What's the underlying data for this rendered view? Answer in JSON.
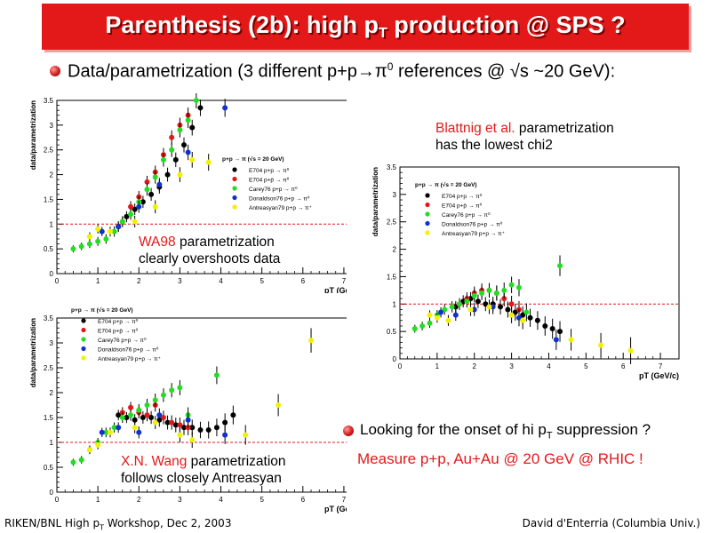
{
  "header": {
    "title_pre": "Parenthesis (2b): high p",
    "title_sub": "T",
    "title_post": " production @ SPS ?"
  },
  "bullet_main": {
    "text_pre": "Data/parametrization (3 different p+p→π",
    "text_sup": "0",
    "text_post": " references @ √s ~20 GeV):"
  },
  "notes": {
    "wa98_red": "WA98",
    "wa98_rest": " parametrization",
    "wa98_line2": "clearly overshoots data",
    "blattnig_red": "Blattnig et al.",
    "blattnig_rest": " parametrization",
    "blattnig_line2": "has the lowest chi2",
    "wang_red": "X.N. Wang",
    "wang_rest": " parametrization",
    "wang_line2": "follows closely Antreasyan"
  },
  "bullet_onset": {
    "text_pre": "Looking for the onset of hi p",
    "text_sub": "T",
    "text_post": " suppression ?"
  },
  "measure": "Measure p+p, Au+Au @ 20 GeV @ RHIC !",
  "footer": {
    "left_pre": "RIKEN/BNL High p",
    "left_sub": "T",
    "left_post": " Workshop, Dec 2, 2003",
    "right": "David d'Enterria (Columbia Univ.)"
  },
  "colors": {
    "title_bg": "#e31919",
    "accent_red": "#e31919",
    "E704_pi0": "#000000",
    "E704_pibar0": "#e31919",
    "Carey76": "#22dd22",
    "Donaldson76": "#1030d0",
    "Antreasyan79": "#f2f200"
  },
  "chart_data": [
    {
      "id": "wa98",
      "type": "scatter",
      "xlabel": "p_T (GeV/c)",
      "ylabel": "data/parametrization",
      "xlim": [
        0,
        7.5
      ],
      "ylim": [
        0,
        3.5
      ],
      "xticks": [
        "0",
        "1",
        "2",
        "3",
        "4",
        "5",
        "6",
        "7"
      ],
      "yticks": [
        "0",
        "0.5",
        "1",
        "1.5",
        "2",
        "2.5",
        "3",
        "3.5"
      ],
      "reference_line": 1,
      "legend_header": "p+p → π (√s = 20 GeV)",
      "series": [
        {
          "name": "E704 p+p → π⁰",
          "color": "#000000",
          "x": [
            1.5,
            1.7,
            1.9,
            2.1,
            2.3,
            2.5,
            2.7,
            2.9,
            3.1,
            3.3,
            3.5
          ],
          "y": [
            0.95,
            1.15,
            1.3,
            1.45,
            1.6,
            1.75,
            2.0,
            2.3,
            2.6,
            2.95,
            3.35
          ]
        },
        {
          "name": "E704 p+p̄ → π⁰",
          "color": "#e31919",
          "x": [
            1.6,
            1.8,
            2.0,
            2.2,
            2.4,
            2.6,
            2.8,
            3.0,
            3.2
          ],
          "y": [
            1.05,
            1.35,
            1.55,
            1.85,
            2.05,
            2.4,
            2.75,
            3.0,
            3.2
          ]
        },
        {
          "name": "Carey76 p+p → π⁰",
          "color": "#22dd22",
          "x": [
            0.4,
            0.6,
            0.8,
            1.0,
            1.2,
            1.4,
            1.6,
            1.8,
            2.0,
            2.2,
            2.4,
            2.6,
            2.8,
            3.0,
            3.2,
            3.4
          ],
          "y": [
            0.5,
            0.55,
            0.6,
            0.65,
            0.7,
            0.85,
            1.05,
            1.2,
            1.45,
            1.7,
            1.95,
            2.3,
            2.5,
            2.9,
            3.1,
            3.5
          ]
        },
        {
          "name": "Donaldson76 p+p → π⁰",
          "color": "#1030d0",
          "x": [
            1.1,
            1.5,
            2.0,
            2.5,
            3.2,
            4.1
          ],
          "y": [
            0.85,
            0.95,
            1.35,
            1.8,
            2.45,
            3.35
          ]
        },
        {
          "name": "Antreasyan79 p+p → π⁺",
          "color": "#f2f200",
          "x": [
            0.8,
            1.0,
            1.3,
            1.9,
            2.4,
            3.0,
            3.3,
            3.7
          ],
          "y": [
            0.75,
            0.9,
            0.85,
            1.05,
            1.35,
            2.0,
            2.3,
            2.25
          ]
        }
      ]
    },
    {
      "id": "blattnig",
      "type": "scatter",
      "xlabel": "p_T (GeV/c)",
      "ylabel": "data/parametrization",
      "xlim": [
        0,
        7.5
      ],
      "ylim": [
        0,
        3.5
      ],
      "xticks": [
        "0",
        "1",
        "2",
        "3",
        "4",
        "5",
        "6",
        "7"
      ],
      "yticks": [
        "0",
        "0.5",
        "1",
        "1.5",
        "2",
        "2.5",
        "3",
        "3.5"
      ],
      "reference_line": 1,
      "legend_header": "p+p → π (√s = 20 GeV)",
      "series": [
        {
          "name": "E704 p+p → π⁰",
          "color": "#000000",
          "x": [
            1.5,
            1.7,
            1.9,
            2.1,
            2.3,
            2.5,
            2.7,
            2.9,
            3.1,
            3.3,
            3.5,
            3.7,
            3.9,
            4.1,
            4.3
          ],
          "y": [
            0.95,
            1.05,
            1.1,
            1.05,
            1.0,
            1.0,
            0.95,
            0.9,
            0.85,
            0.8,
            0.75,
            0.7,
            0.6,
            0.55,
            0.5
          ]
        },
        {
          "name": "E704 p+p̄ → π⁰",
          "color": "#e31919",
          "x": [
            1.6,
            1.8,
            2.0,
            2.2,
            2.4,
            2.6,
            2.8,
            3.0,
            3.2
          ],
          "y": [
            1.0,
            1.1,
            1.2,
            1.25,
            1.25,
            1.2,
            1.1,
            1.0,
            0.9
          ]
        },
        {
          "name": "Carey76 p+p → π⁰",
          "color": "#22dd22",
          "x": [
            0.4,
            0.6,
            0.8,
            1.0,
            1.2,
            1.4,
            1.6,
            1.8,
            2.0,
            2.2,
            2.4,
            2.6,
            2.8,
            3.0,
            3.2,
            3.4,
            4.3
          ],
          "y": [
            0.55,
            0.6,
            0.65,
            0.8,
            0.9,
            0.95,
            1.0,
            1.05,
            1.15,
            1.2,
            1.25,
            1.2,
            1.25,
            1.35,
            1.3,
            0.85,
            1.7
          ]
        },
        {
          "name": "Donaldson76 p+p → π⁰",
          "color": "#1030d0",
          "x": [
            1.1,
            1.5,
            2.0,
            2.5,
            3.2,
            4.2
          ],
          "y": [
            0.85,
            0.8,
            0.9,
            0.95,
            0.75,
            0.35
          ]
        },
        {
          "name": "Antreasyan79 p+p → π⁺",
          "color": "#f2f200",
          "x": [
            0.8,
            1.0,
            1.3,
            1.9,
            2.4,
            3.0,
            3.3,
            4.6,
            5.4,
            6.2
          ],
          "y": [
            0.8,
            0.75,
            0.7,
            0.9,
            0.95,
            0.8,
            0.7,
            0.35,
            0.25,
            0.15
          ]
        }
      ]
    },
    {
      "id": "wang",
      "type": "scatter",
      "xlabel": "p_T (GeV/c)",
      "ylabel": "data/parametrization",
      "xlim": [
        0,
        7.5
      ],
      "ylim": [
        0,
        3.5
      ],
      "xticks": [
        "0",
        "1",
        "2",
        "3",
        "4",
        "5",
        "6",
        "7"
      ],
      "yticks": [
        "0",
        "0.5",
        "1",
        "1.5",
        "2",
        "2.5",
        "3",
        "3.5"
      ],
      "reference_line": 1,
      "legend_header": "p+p → π (√s = 20 GeV)",
      "series": [
        {
          "name": "E704 p+p → π⁰",
          "color": "#000000",
          "x": [
            1.5,
            1.7,
            1.9,
            2.1,
            2.3,
            2.5,
            2.7,
            2.9,
            3.1,
            3.3,
            3.5,
            3.7,
            3.9,
            4.1,
            4.3
          ],
          "y": [
            1.55,
            1.5,
            1.45,
            1.5,
            1.5,
            1.45,
            1.4,
            1.35,
            1.3,
            1.3,
            1.25,
            1.25,
            1.3,
            1.4,
            1.55
          ]
        },
        {
          "name": "E704 p+p̄ → π⁰",
          "color": "#e31919",
          "x": [
            1.6,
            1.8,
            2.0,
            2.2,
            2.4,
            2.6,
            2.8,
            3.0,
            3.2
          ],
          "y": [
            1.6,
            1.7,
            1.6,
            1.55,
            1.75,
            1.5,
            1.4,
            1.35,
            1.3
          ]
        },
        {
          "name": "Carey76 p+p → π⁰",
          "color": "#22dd22",
          "x": [
            0.4,
            0.6,
            0.8,
            1.0,
            1.2,
            1.4,
            1.6,
            1.8,
            2.0,
            2.2,
            2.4,
            2.6,
            2.8,
            3.0,
            3.2,
            3.9
          ],
          "y": [
            0.6,
            0.65,
            0.85,
            1.0,
            1.2,
            1.3,
            1.5,
            1.55,
            1.65,
            1.75,
            1.85,
            1.95,
            2.05,
            2.1,
            1.55,
            2.35
          ]
        },
        {
          "name": "Donaldson76 p+p → π⁰",
          "color": "#1030d0",
          "x": [
            1.1,
            1.5,
            2.0,
            2.5,
            3.2,
            4.1
          ],
          "y": [
            1.2,
            1.3,
            1.2,
            1.55,
            1.45,
            1.15
          ]
        },
        {
          "name": "Antreasyan79 p+p → π⁺",
          "color": "#f2f200",
          "x": [
            0.8,
            1.0,
            1.3,
            1.9,
            2.4,
            3.0,
            3.3,
            4.6,
            5.4,
            6.2
          ],
          "y": [
            0.85,
            0.95,
            1.2,
            1.3,
            1.4,
            1.15,
            1.05,
            1.15,
            1.75,
            3.05
          ]
        }
      ]
    }
  ]
}
